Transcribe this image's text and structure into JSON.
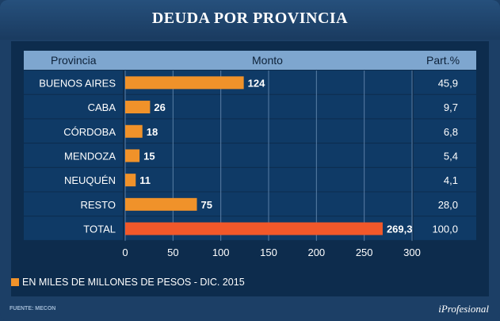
{
  "title": "DEUDA POR PROVINCIA",
  "table_headers": {
    "provincia": "Provincia",
    "monto": "Monto",
    "part": "Part.%"
  },
  "colors": {
    "bar": "#f0922a",
    "total_bar": "#f2582a",
    "background": "#1c3f66",
    "panel": "#0d2c4d"
  },
  "chart_data": {
    "type": "bar",
    "orientation": "horizontal",
    "categories": [
      "BUENOS AIRES",
      "CABA",
      "CÓRDOBA",
      "MENDOZA",
      "NEUQUÉN",
      "RESTO",
      "TOTAL"
    ],
    "values": [
      124,
      26,
      18,
      15,
      11,
      75,
      269.3
    ],
    "value_labels": [
      "124",
      "26",
      "18",
      "15",
      "11",
      "75",
      "269,3"
    ],
    "part_pct": [
      "45,9",
      "9,7",
      "6,8",
      "5,4",
      "4,1",
      "28,0",
      "100,0"
    ],
    "xlim": [
      0,
      300
    ],
    "xticks": [
      "0",
      "50",
      "100",
      "150",
      "200",
      "250",
      "300"
    ],
    "grid": true
  },
  "legend": "EN MILES DE MILLONES DE PESOS - DIC. 2015",
  "source": "FUENTE: MECON",
  "brand": "iProfesional"
}
